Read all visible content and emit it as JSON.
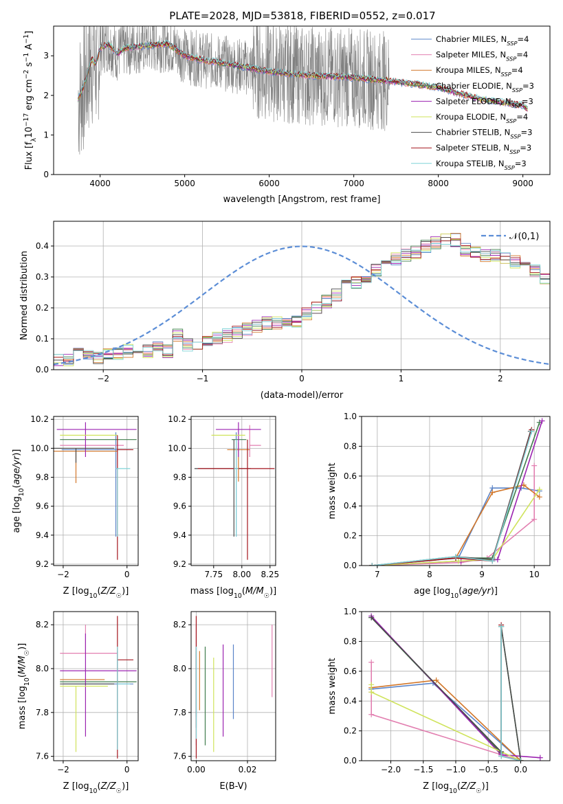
{
  "title": "PLATE=2028, MJD=53818, FIBERID=0552, z=0.017",
  "colors": [
    "#5a84c8",
    "#e27fb0",
    "#d27628",
    "#3f7c4c",
    "#9b22b0",
    "#cfe35a",
    "#4a4a4a",
    "#a3141c",
    "#7fd3d7"
  ],
  "legend": [
    "Chabrier MILES, N_SSP=4",
    "Salpeter MILES, N_SSP=4",
    "Kroupa MILES, N_SSP=4",
    "Chabrier ELODIE, N_SSP=3",
    "Salpeter ELODIE, N_SSP=3",
    "Kroupa ELODIE, N_SSP=4",
    "Chabrier STELIB, N_SSP=3",
    "Salpeter STELIB, N_SSP=3",
    "Kroupa STELIB, N_SSP=3"
  ],
  "chart_data": [
    {
      "type": "line",
      "title": "PLATE=2028, MJD=53818, FIBERID=0552, z=0.017",
      "xlabel": "wavelength [Angstrom, rest frame]",
      "ylabel": "Flux [f_λ10^-17 erg cm^-2 s^-1 A^-1]",
      "xlim": [
        3450,
        9320
      ],
      "ylim": [
        0,
        3.75
      ],
      "xticks": [
        4000,
        5000,
        6000,
        7000,
        8000,
        9000
      ],
      "yticks": [
        0,
        1,
        2,
        3
      ],
      "data_color": "#808080",
      "data_range": [
        3740,
        7420
      ],
      "model_continuum": {
        "x": [
          3740,
          3800,
          3900,
          3950,
          4000,
          4100,
          4200,
          4300,
          4500,
          4800,
          5000,
          5200,
          5500,
          6000,
          6500,
          7000,
          7500,
          8000,
          8500,
          9000,
          9050
        ],
        "y": [
          1.9,
          2.2,
          2.9,
          2.8,
          3.2,
          3.3,
          3.05,
          3.2,
          3.25,
          3.3,
          3.0,
          2.9,
          2.8,
          2.6,
          2.5,
          2.45,
          2.35,
          2.2,
          1.9,
          1.75,
          1.65
        ]
      },
      "legend_position": "upper-right"
    },
    {
      "type": "step",
      "xlabel": "(data-model)/error",
      "ylabel": "Normed distribution",
      "xlim": [
        -2.5,
        2.5
      ],
      "ylim": [
        0,
        0.48
      ],
      "xticks": [
        -2,
        -1,
        0,
        1,
        2
      ],
      "yticks": [
        0.0,
        0.1,
        0.2,
        0.3,
        0.4
      ],
      "bin_width": 0.1,
      "bins_mean": [
        0.03,
        0.03,
        0.05,
        0.04,
        0.04,
        0.05,
        0.05,
        0.06,
        0.06,
        0.06,
        0.07,
        0.06,
        0.11,
        0.08,
        0.08,
        0.1,
        0.1,
        0.11,
        0.12,
        0.13,
        0.14,
        0.15,
        0.15,
        0.16,
        0.16,
        0.18,
        0.2,
        0.22,
        0.24,
        0.27,
        0.28,
        0.3,
        0.32,
        0.34,
        0.36,
        0.37,
        0.38,
        0.4,
        0.41,
        0.42,
        0.42,
        0.39,
        0.38,
        0.37,
        0.37,
        0.36,
        0.35,
        0.34,
        0.32,
        0.3,
        0.29,
        0.26,
        0.25,
        0.22,
        0.2,
        0.18,
        0.16,
        0.15,
        0.13,
        0.12,
        0.11,
        0.09,
        0.09,
        0.08,
        0.08,
        0.07,
        0.06,
        0.05,
        0.05,
        0.05,
        0.04,
        0.04,
        0.04,
        0.03,
        0.03,
        0.03,
        0.03,
        0.02,
        0.02,
        0.02
      ],
      "reference_curve": {
        "name": "N(0,1)",
        "style": "dashed",
        "color": "#5b8dd6"
      },
      "legend": [
        "𝒩(0,1)"
      ],
      "legend_position": "upper-right"
    },
    {
      "type": "errorbar",
      "xlabel": "Z [log10(Z/Z☉)]",
      "ylabel": "age [log10(age/yr)]",
      "xlim": [
        -2.3,
        0.35
      ],
      "ylim": [
        9.19,
        10.22
      ],
      "xticks": [
        -2,
        0
      ],
      "yticks": [
        9.2,
        9.4,
        9.6,
        9.8,
        10.0,
        10.2
      ],
      "points": [
        {
          "x": -0.35,
          "y": 9.99,
          "xerr": [
            1.7,
            0.5
          ],
          "yerr": [
            0.6,
            0.12
          ]
        },
        {
          "x": -0.9,
          "y": 10.02,
          "xerr": [
            1.2,
            0.8
          ],
          "yerr": [
            0.0,
            0.0
          ]
        },
        {
          "x": -1.6,
          "y": 9.98,
          "xerr": [
            0.7,
            1.3
          ],
          "yerr": [
            0.22,
            0.0
          ]
        },
        {
          "x": -0.8,
          "y": 10.06,
          "xerr": [
            1.3,
            1.1
          ],
          "yerr": [
            0.0,
            0.0
          ]
        },
        {
          "x": -1.3,
          "y": 10.13,
          "xerr": [
            0.9,
            1.6
          ],
          "yerr": [
            0.19,
            0.05
          ]
        },
        {
          "x": -0.9,
          "y": 10.09,
          "xerr": [
            1.2,
            0.6
          ],
          "yerr": [
            0.0,
            0.0
          ]
        },
        {
          "x": -1.6,
          "y": 10.0,
          "xerr": [
            0.7,
            1.2
          ],
          "yerr": [
            0.1,
            0.0
          ]
        },
        {
          "x": -0.3,
          "y": 9.99,
          "xerr": [
            0.0,
            0.5
          ],
          "yerr": [
            0.76,
            0.1
          ]
        },
        {
          "x": -0.3,
          "y": 9.86,
          "xerr": [
            0.05,
            0.4
          ],
          "yerr": [
            0.47,
            0.0
          ]
        }
      ]
    },
    {
      "type": "errorbar",
      "xlabel": "mass [log10(M/M☉)]",
      "xlim": [
        7.55,
        8.3
      ],
      "ylim": [
        9.19,
        10.22
      ],
      "xticks": [
        7.75,
        8.0,
        8.25
      ],
      "yticks": [
        9.2,
        9.4,
        9.6,
        9.8,
        10.0,
        10.2
      ],
      "points": [
        {
          "x": 7.95,
          "y": 9.99,
          "xerr": [
            0.03,
            0.03
          ],
          "yerr": [
            0.6,
            0.12
          ]
        },
        {
          "x": 8.07,
          "y": 10.02,
          "xerr": [
            0.0,
            0.1
          ],
          "yerr": [
            0.08,
            0.14
          ]
        },
        {
          "x": 7.97,
          "y": 9.99,
          "xerr": [
            0.1,
            0.1
          ],
          "yerr": [
            0.22,
            0.05
          ]
        },
        {
          "x": 7.96,
          "y": 10.06,
          "xerr": [
            0.05,
            0.08
          ],
          "yerr": [
            0.0,
            0.0
          ]
        },
        {
          "x": 7.97,
          "y": 10.13,
          "xerr": [
            0.2,
            0.2
          ],
          "yerr": [
            0.19,
            0.05
          ]
        },
        {
          "x": 7.93,
          "y": 10.09,
          "xerr": [
            0.2,
            0.1
          ],
          "yerr": [
            0.0,
            0.0
          ]
        },
        {
          "x": 7.93,
          "y": 9.86,
          "xerr": [
            0.35,
            0.15
          ],
          "yerr": [
            0.47,
            0.2
          ]
        },
        {
          "x": 8.05,
          "y": 9.86,
          "xerr": [
            0.44,
            0.24
          ],
          "yerr": [
            0.63,
            0.2
          ]
        },
        {
          "x": 7.95,
          "y": 9.86,
          "xerr": [
            0.02,
            0.02
          ],
          "yerr": [
            0.47,
            0.2
          ]
        }
      ]
    },
    {
      "type": "line",
      "xlabel": "age  [log10(age/yr)]",
      "ylabel": "mass weight",
      "xlim": [
        6.7,
        10.3
      ],
      "ylim": [
        0,
        1.0
      ],
      "xticks": [
        7,
        8,
        9,
        10
      ],
      "yticks": [
        0.0,
        0.2,
        0.4,
        0.6,
        0.8,
        1.0
      ],
      "series": [
        {
          "x": [
            6.9,
            8.55,
            9.2,
            9.75,
            10.1
          ],
          "y": [
            0.0,
            0.05,
            0.52,
            0.52,
            0.5
          ]
        },
        {
          "x": [
            6.9,
            8.6,
            9.1,
            10.0,
            10.0
          ],
          "y": [
            0.0,
            0.02,
            0.05,
            0.31,
            0.67
          ]
        },
        {
          "x": [
            6.9,
            8.5,
            9.2,
            9.8,
            10.1
          ],
          "y": [
            0.0,
            0.05,
            0.49,
            0.54,
            0.46
          ]
        },
        {
          "x": [
            6.9,
            8.5,
            9.2,
            10.1
          ],
          "y": [
            0.0,
            0.05,
            0.05,
            0.96
          ]
        },
        {
          "x": [
            6.9,
            8.6,
            9.3,
            10.15
          ],
          "y": [
            0.0,
            0.03,
            0.04,
            0.97
          ]
        },
        {
          "x": [
            6.9,
            8.55,
            9.2,
            10.1
          ],
          "y": [
            0.0,
            0.03,
            0.04,
            0.51
          ]
        },
        {
          "x": [
            6.9,
            8.5,
            9.2,
            9.93
          ],
          "y": [
            0.0,
            0.06,
            0.04,
            0.9
          ]
        },
        {
          "x": [
            6.9,
            8.5,
            9.2,
            9.95
          ],
          "y": [
            0.0,
            0.05,
            0.03,
            0.91
          ]
        },
        {
          "x": [
            6.9,
            8.5,
            9.2,
            9.95
          ],
          "y": [
            0.0,
            0.06,
            0.03,
            0.9
          ]
        }
      ]
    },
    {
      "type": "errorbar",
      "xlabel": "Z [log10(Z/Z☉)]",
      "ylabel": "mass [log10(M/M☉)]",
      "xlim": [
        -2.3,
        0.35
      ],
      "ylim": [
        7.58,
        8.26
      ],
      "xticks": [
        -2,
        0
      ],
      "yticks": [
        7.6,
        7.8,
        8.0,
        8.2
      ],
      "points": [
        {
          "x": -0.3,
          "y": 7.93,
          "xerr": [
            1.7,
            0.5
          ],
          "yerr": [
            0.3,
            0.15
          ]
        },
        {
          "x": -1.3,
          "y": 8.07,
          "xerr": [
            0.8,
            1.0
          ],
          "yerr": [
            0.0,
            0.13
          ]
        },
        {
          "x": -0.9,
          "y": 7.95,
          "xerr": [
            1.2,
            0.2
          ],
          "yerr": [
            0.0,
            0.0
          ]
        },
        {
          "x": -1.1,
          "y": 7.94,
          "xerr": [
            1.0,
            1.4
          ],
          "yerr": [
            0.0,
            0.0
          ]
        },
        {
          "x": -1.3,
          "y": 7.99,
          "xerr": [
            0.8,
            1.6
          ],
          "yerr": [
            0.3,
            0.17
          ]
        },
        {
          "x": -1.6,
          "y": 7.92,
          "xerr": [
            0.5,
            1.0
          ],
          "yerr": [
            0.3,
            0.0
          ]
        },
        {
          "x": -1.6,
          "y": 7.93,
          "xerr": [
            0.5,
            1.2
          ],
          "yerr": [
            0.0,
            0.0
          ]
        },
        {
          "x": -0.3,
          "y": 8.04,
          "xerr": [
            0.0,
            0.5
          ],
          "yerr": [
            0.45,
            0.2
          ]
        },
        {
          "x": -0.3,
          "y": 7.93,
          "xerr": [
            0.0,
            0.4
          ],
          "yerr": [
            0.3,
            0.17
          ]
        }
      ]
    },
    {
      "type": "errorbar",
      "xlabel": "E(B-V)",
      "xlim": [
        -0.002,
        0.031
      ],
      "ylim": [
        7.58,
        8.26
      ],
      "xticks": [
        0.0,
        0.02
      ],
      "yticks": [
        7.6,
        7.8,
        8.0,
        8.2
      ],
      "points": [
        {
          "x": 0.0,
          "y": 7.93,
          "yerr": [
            0.15,
            0.15
          ]
        },
        {
          "x": 0.0,
          "y": 8.0,
          "yerr": [
            0.35,
            0.2
          ]
        },
        {
          "x": 0.0013,
          "y": 7.93,
          "yerr": [
            0.12,
            0.15
          ]
        },
        {
          "x": 0.0035,
          "y": 7.9,
          "yerr": [
            0.25,
            0.2
          ]
        },
        {
          "x": 0.0105,
          "y": 7.99,
          "yerr": [
            0.3,
            0.12
          ]
        },
        {
          "x": 0.0068,
          "y": 7.9,
          "yerr": [
            0.28,
            0.15
          ]
        },
        {
          "x": 0.0,
          "y": 7.93,
          "yerr": [
            0.2,
            0.17
          ]
        },
        {
          "x": 0.0,
          "y": 8.04,
          "yerr": [
            0.45,
            0.2
          ]
        },
        {
          "x": 0.0,
          "y": 7.93,
          "yerr": [
            0.25,
            0.17
          ]
        },
        {
          "x": 0.0145,
          "y": 7.93,
          "yerr": [
            0.16,
            0.18
          ]
        },
        {
          "x": 0.0296,
          "y": 8.07,
          "yerr": [
            0.2,
            0.13
          ]
        }
      ]
    },
    {
      "type": "line",
      "xlabel": "Z [log10(Z/Z☉)]",
      "ylabel": "mass weight",
      "xlim": [
        -2.45,
        0.45
      ],
      "ylim": [
        0,
        1.0
      ],
      "xticks": [
        -2.0,
        -1.5,
        -1.0,
        -0.5,
        0.0
      ],
      "yticks": [
        0.0,
        0.2,
        0.4,
        0.6,
        0.8,
        1.0
      ],
      "series": [
        {
          "x": [
            -2.3,
            -1.35,
            0.0
          ],
          "y": [
            0.48,
            0.52,
            0.0
          ]
        },
        {
          "x": [
            -2.3,
            -2.3,
            -2.3,
            0.0
          ],
          "y": [
            0.66,
            0.46,
            0.31,
            0.0
          ]
        },
        {
          "x": [
            -2.3,
            -1.3,
            0.0
          ],
          "y": [
            0.49,
            0.54,
            0.0
          ]
        },
        {
          "x": [
            -2.3,
            -0.3,
            -0.3,
            0.0
          ],
          "y": [
            0.96,
            0.05,
            0.9,
            0.0
          ]
        },
        {
          "x": [
            -2.3,
            -0.3,
            0.3
          ],
          "y": [
            0.97,
            0.04,
            0.02
          ]
        },
        {
          "x": [
            -2.3,
            -2.3,
            0.0
          ],
          "y": [
            0.51,
            0.46,
            0.0
          ]
        },
        {
          "x": [
            -2.3,
            -0.3,
            -0.3,
            0.0
          ],
          "y": [
            0.96,
            0.06,
            0.9,
            0.0
          ]
        },
        {
          "x": [
            -0.3,
            -0.3,
            0.0
          ],
          "y": [
            0.91,
            0.03,
            0.0
          ]
        },
        {
          "x": [
            -0.3,
            -0.3,
            0.0
          ],
          "y": [
            0.9,
            0.03,
            0.0
          ]
        }
      ]
    }
  ]
}
